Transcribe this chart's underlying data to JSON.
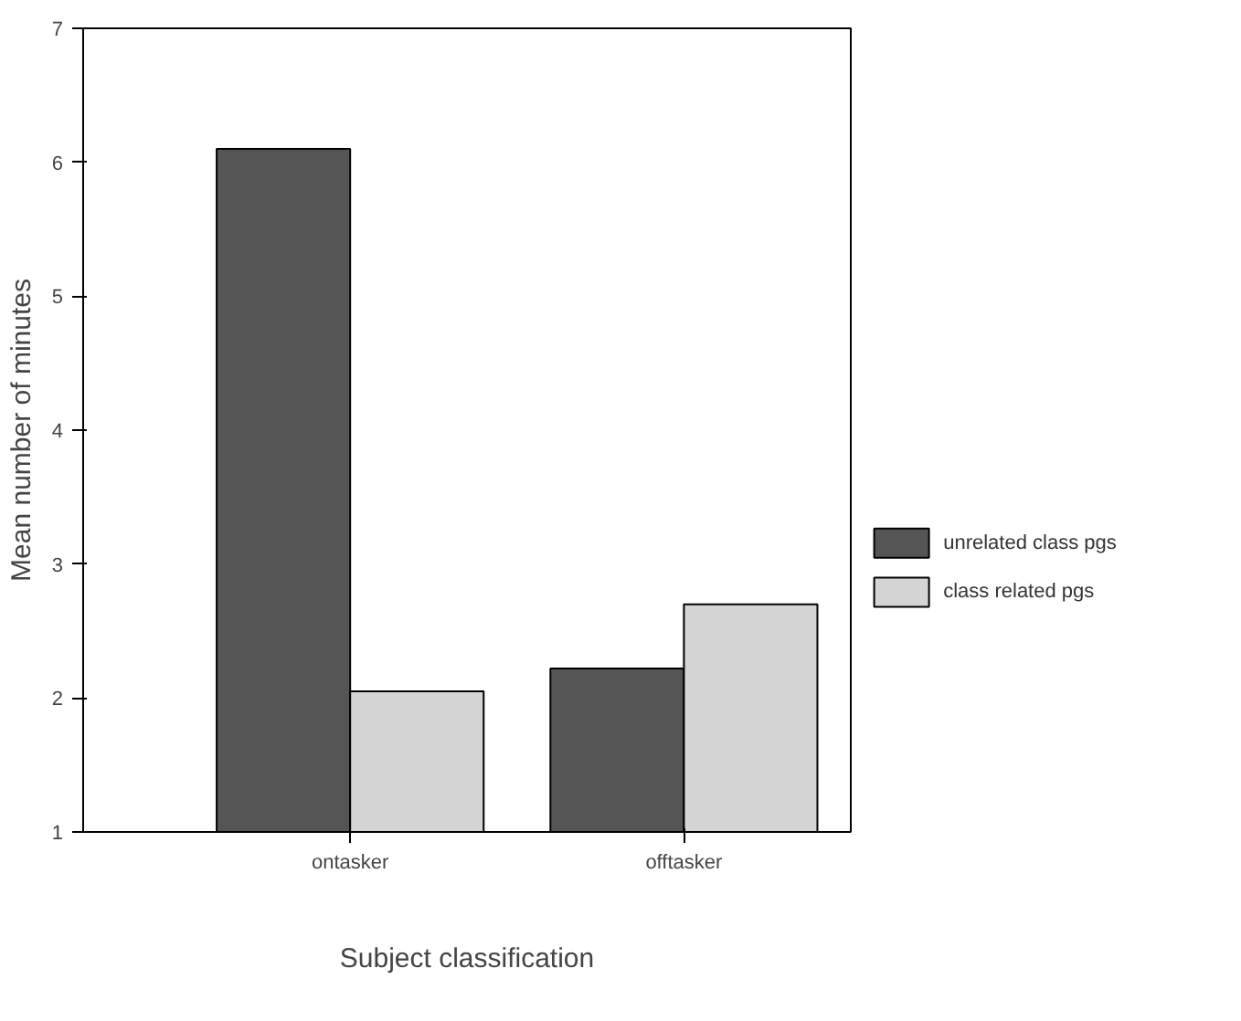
{
  "chart_data": {
    "type": "bar",
    "xlabel": "Subject classification",
    "ylabel": "Mean number of minutes",
    "categories": [
      "ontasker",
      "offtasker"
    ],
    "series": [
      {
        "name": "unrelated class pgs",
        "color": "#555555",
        "values": [
          6.1,
          2.22
        ]
      },
      {
        "name": "class related pgs",
        "color": "#d4d4d4",
        "values": [
          2.05,
          2.7
        ]
      }
    ],
    "ylim": [
      1,
      7
    ],
    "yticks": [
      1,
      2,
      3,
      4,
      5,
      6,
      7
    ],
    "grid": false,
    "legend": "bottom right"
  }
}
